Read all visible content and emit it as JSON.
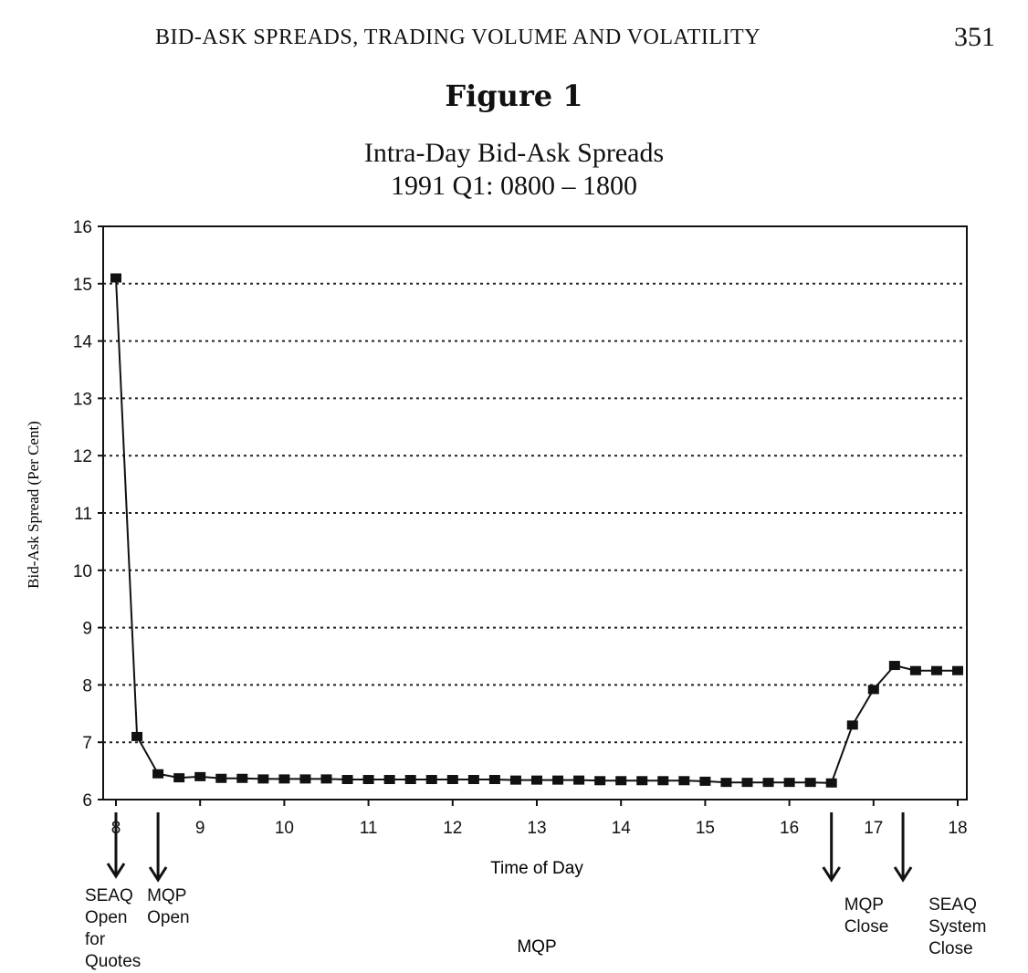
{
  "page": {
    "running_head": "BID-ASK SPREADS, TRADING VOLUME AND VOLATILITY",
    "page_number": "351",
    "figure_label": "Figure 1"
  },
  "chart_data": {
    "type": "line",
    "title": "Intra-Day Bid-Ask Spreads",
    "subtitle": "1991 Q1: 0800 – 1800",
    "xlabel": "Time of Day",
    "ylabel": "Bid-Ask Spread (Per Cent)",
    "xlim": [
      8,
      18
    ],
    "ylim": [
      6,
      16
    ],
    "x_ticks": [
      "8",
      "9",
      "10",
      "11",
      "12",
      "13",
      "14",
      "15",
      "16",
      "17",
      "18"
    ],
    "y_ticks": [
      "6",
      "7",
      "8",
      "9",
      "10",
      "11",
      "12",
      "13",
      "14",
      "15",
      "16"
    ],
    "grid": "horizontal dotted",
    "series": [
      {
        "x": [
          8.0,
          8.25,
          8.5,
          8.75,
          9.0,
          9.25,
          9.5,
          9.75,
          10.0,
          10.25,
          10.5,
          10.75,
          11.0,
          11.25,
          11.5,
          11.75,
          12.0,
          12.25,
          12.5,
          12.75,
          13.0,
          13.25,
          13.5,
          13.75,
          14.0,
          14.25,
          14.5,
          14.75,
          15.0,
          15.25,
          15.5,
          15.75,
          16.0,
          16.25,
          16.5,
          16.75,
          17.0,
          17.25,
          17.5,
          17.75,
          18.0
        ],
        "y": [
          15.1,
          7.1,
          6.45,
          6.38,
          6.4,
          6.37,
          6.37,
          6.36,
          6.36,
          6.36,
          6.36,
          6.35,
          6.35,
          6.35,
          6.35,
          6.35,
          6.35,
          6.35,
          6.35,
          6.34,
          6.34,
          6.34,
          6.34,
          6.33,
          6.33,
          6.33,
          6.33,
          6.33,
          6.32,
          6.3,
          6.3,
          6.3,
          6.3,
          6.3,
          6.29,
          7.3,
          7.92,
          8.34,
          8.25,
          8.25,
          8.25
        ]
      }
    ],
    "annotations": [
      {
        "x": 8.0,
        "text_lines": [
          "SEAQ",
          "Open",
          "for",
          "Quotes"
        ]
      },
      {
        "x": 8.5,
        "text_lines": [
          "MQP",
          "Open"
        ]
      },
      {
        "x": 16.5,
        "text_lines": [
          "MQP",
          "Close"
        ]
      },
      {
        "x": 17.35,
        "text_lines": [
          "SEAQ",
          "System",
          "Close"
        ]
      }
    ],
    "period_label": "MQP"
  }
}
